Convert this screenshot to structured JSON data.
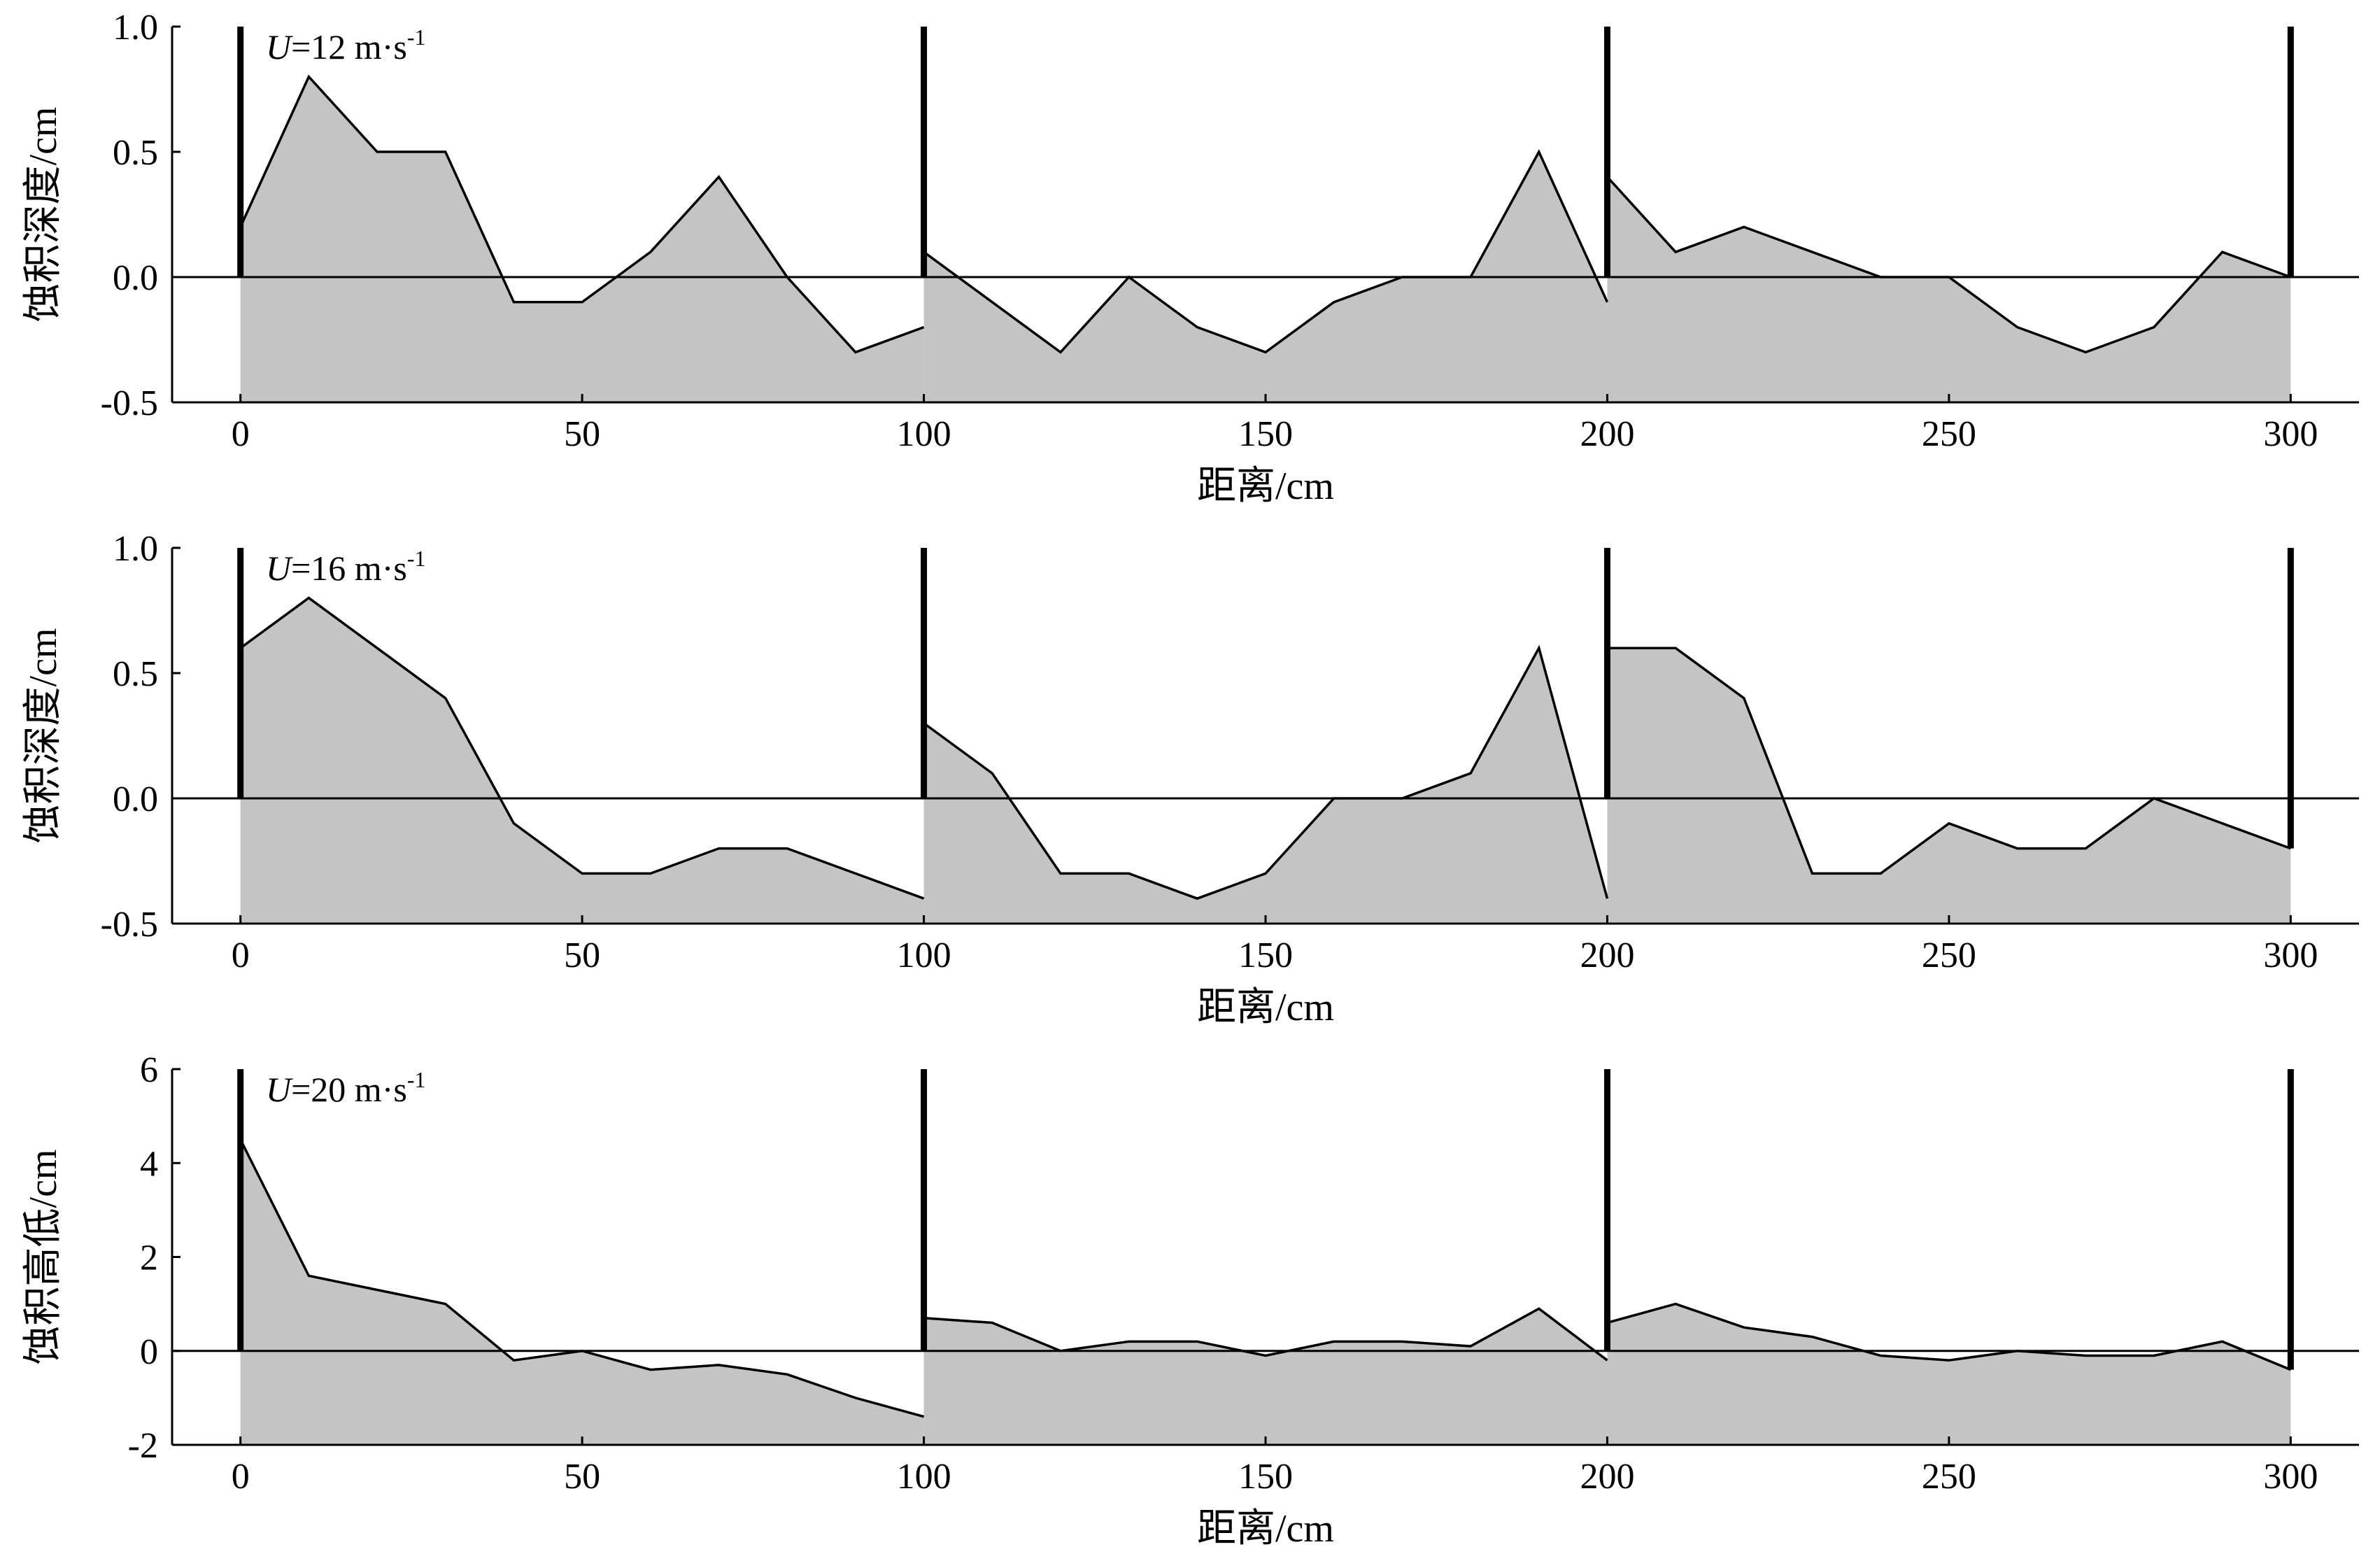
{
  "chart_data": [
    {
      "type": "area",
      "speed_label": {
        "var": "U",
        "eq": "=12 m·s",
        "sup": "-1"
      },
      "xlabel": "距离/cm",
      "ylabel": "蚀积深度/cm",
      "xlim": [
        -10,
        310
      ],
      "ylim": [
        -0.5,
        1.0
      ],
      "xticks": [
        0,
        50,
        100,
        150,
        200,
        250,
        300
      ],
      "yticks": [
        "-0.5",
        "0.0",
        "0.5",
        "1.0"
      ],
      "baseline": 0,
      "barriers": [
        0,
        100,
        200,
        300
      ],
      "segments": [
        {
          "x": [
            0,
            10,
            20,
            30,
            40,
            50,
            60,
            70,
            80,
            90,
            100
          ],
          "y": [
            0.2,
            0.8,
            0.5,
            0.5,
            -0.1,
            -0.1,
            0.1,
            0.4,
            0.0,
            -0.3,
            -0.2
          ]
        },
        {
          "x": [
            100,
            110,
            120,
            130,
            140,
            150,
            160,
            170,
            180,
            190,
            200
          ],
          "y": [
            0.1,
            -0.1,
            -0.3,
            0.0,
            -0.2,
            -0.3,
            -0.1,
            0.0,
            0.0,
            0.5,
            -0.1
          ]
        },
        {
          "x": [
            200,
            210,
            220,
            230,
            240,
            250,
            260,
            270,
            280,
            290,
            300
          ],
          "y": [
            0.4,
            0.1,
            0.2,
            0.1,
            0.0,
            0.0,
            -0.2,
            -0.3,
            -0.2,
            0.1,
            0.0
          ]
        }
      ]
    },
    {
      "type": "area",
      "speed_label": {
        "var": "U",
        "eq": "=16 m·s",
        "sup": "-1"
      },
      "xlabel": "距离/cm",
      "ylabel": "蚀积深度/cm",
      "xlim": [
        -10,
        310
      ],
      "ylim": [
        -0.5,
        1.0
      ],
      "xticks": [
        0,
        50,
        100,
        150,
        200,
        250,
        300
      ],
      "yticks": [
        "-0.5",
        "0.0",
        "0.5",
        "1.0"
      ],
      "baseline": 0,
      "barriers": [
        0,
        100,
        200,
        300
      ],
      "segments": [
        {
          "x": [
            0,
            10,
            20,
            30,
            40,
            50,
            60,
            70,
            80,
            90,
            100
          ],
          "y": [
            0.6,
            0.8,
            0.6,
            0.4,
            -0.1,
            -0.3,
            -0.3,
            -0.2,
            -0.2,
            -0.3,
            -0.4
          ]
        },
        {
          "x": [
            100,
            110,
            120,
            130,
            140,
            150,
            160,
            170,
            180,
            190,
            200
          ],
          "y": [
            0.3,
            0.1,
            -0.3,
            -0.3,
            -0.4,
            -0.3,
            0.0,
            0.0,
            0.1,
            0.6,
            -0.4
          ]
        },
        {
          "x": [
            200,
            210,
            220,
            230,
            240,
            250,
            260,
            270,
            280,
            290,
            300
          ],
          "y": [
            0.6,
            0.6,
            0.4,
            -0.3,
            -0.3,
            -0.1,
            -0.2,
            -0.2,
            0.0,
            -0.1,
            -0.2
          ]
        }
      ]
    },
    {
      "type": "area",
      "speed_label": {
        "var": "U",
        "eq": "=20 m·s",
        "sup": "-1"
      },
      "xlabel": "距离/cm",
      "ylabel": "蚀积高低/cm",
      "xlim": [
        -10,
        310
      ],
      "ylim": [
        -2,
        6
      ],
      "xticks": [
        0,
        50,
        100,
        150,
        200,
        250,
        300
      ],
      "yticks": [
        "-2",
        "0",
        "2",
        "4",
        "6"
      ],
      "baseline": 0,
      "barriers": [
        0,
        100,
        200,
        300
      ],
      "segments": [
        {
          "x": [
            0,
            10,
            20,
            30,
            40,
            50,
            60,
            70,
            80,
            90,
            100
          ],
          "y": [
            4.5,
            1.6,
            1.3,
            1.0,
            -0.2,
            0.0,
            -0.4,
            -0.3,
            -0.5,
            -1.0,
            -1.4
          ]
        },
        {
          "x": [
            100,
            110,
            120,
            130,
            140,
            150,
            160,
            170,
            180,
            190,
            200
          ],
          "y": [
            0.7,
            0.6,
            0.0,
            0.2,
            0.2,
            -0.1,
            0.2,
            0.2,
            0.1,
            0.9,
            -0.2
          ]
        },
        {
          "x": [
            200,
            210,
            220,
            230,
            240,
            250,
            260,
            270,
            280,
            290,
            300
          ],
          "y": [
            0.6,
            1.0,
            0.5,
            0.3,
            -0.1,
            -0.2,
            0.0,
            -0.1,
            -0.1,
            0.2,
            -0.4
          ]
        }
      ]
    }
  ]
}
